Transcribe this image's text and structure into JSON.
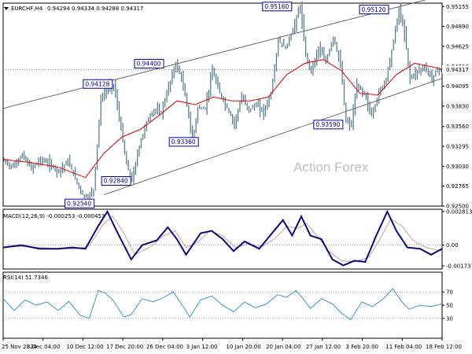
{
  "chart_data": {
    "type": "line",
    "symbol": "EURCHF,H4",
    "quote": "0.94294 0.94334 0.94288 0.94317",
    "watermark": "Action Forex",
    "current_price": 0.94317,
    "current_price_label": "0.94317",
    "price_axis_ticks": [
      "0.95155",
      "0.94890",
      "0.94625",
      "0.94360",
      "0.94095",
      "0.93830",
      "0.93560",
      "0.93295",
      "0.93030",
      "0.92765",
      "0.92500"
    ],
    "ylim": [
      0.925,
      0.952
    ],
    "date_labels": [
      "25 Nov 2024",
      "3 Dec 04:00",
      "10 Dec 12:00",
      "17 Dec 20:00",
      "26 Dec 04:00",
      "3 Jan 12:00",
      "10 Jan 20:00",
      "20 Jan 04:00",
      "27 Jan 12:00",
      "3 Feb 20:00",
      "11 Feb 04:00",
      "18 Feb 12:00"
    ],
    "price_bars": 240,
    "price_path": [
      [
        0,
        0.931
      ],
      [
        5,
        0.9302
      ],
      [
        10,
        0.9318
      ],
      [
        15,
        0.93
      ],
      [
        20,
        0.9312
      ],
      [
        25,
        0.9306
      ],
      [
        30,
        0.9296
      ],
      [
        35,
        0.931
      ],
      [
        40,
        0.9281
      ],
      [
        43,
        0.9265
      ],
      [
        46,
        0.9262
      ],
      [
        49,
        0.9272
      ],
      [
        53,
        0.9392
      ],
      [
        57,
        0.9408
      ],
      [
        60,
        0.9412
      ],
      [
        63,
        0.9368
      ],
      [
        67,
        0.9305
      ],
      [
        70,
        0.9284
      ],
      [
        74,
        0.933
      ],
      [
        78,
        0.9362
      ],
      [
        82,
        0.9378
      ],
      [
        86,
        0.9375
      ],
      [
        90,
        0.9408
      ],
      [
        94,
        0.944
      ],
      [
        97,
        0.942
      ],
      [
        100,
        0.9385
      ],
      [
        103,
        0.9336
      ],
      [
        106,
        0.938
      ],
      [
        110,
        0.938
      ],
      [
        114,
        0.943
      ],
      [
        118,
        0.94
      ],
      [
        122,
        0.938
      ],
      [
        126,
        0.936
      ],
      [
        130,
        0.9395
      ],
      [
        134,
        0.9378
      ],
      [
        138,
        0.9385
      ],
      [
        142,
        0.9375
      ],
      [
        146,
        0.94
      ],
      [
        150,
        0.947
      ],
      [
        154,
        0.946
      ],
      [
        158,
        0.9485
      ],
      [
        162,
        0.9516
      ],
      [
        165,
        0.945
      ],
      [
        168,
        0.943
      ],
      [
        172,
        0.946
      ],
      [
        176,
        0.9442
      ],
      [
        180,
        0.9475
      ],
      [
        184,
        0.9438
      ],
      [
        187,
        0.9362
      ],
      [
        190,
        0.9359
      ],
      [
        193,
        0.941
      ],
      [
        197,
        0.94
      ],
      [
        201,
        0.937
      ],
      [
        205,
        0.94
      ],
      [
        209,
        0.942
      ],
      [
        213,
        0.947
      ],
      [
        216,
        0.9512
      ],
      [
        219,
        0.948
      ],
      [
        222,
        0.942
      ],
      [
        226,
        0.943
      ],
      [
        230,
        0.9435
      ],
      [
        234,
        0.942
      ],
      [
        237,
        0.9432
      ],
      [
        240,
        0.9432
      ]
    ],
    "channel": {
      "upper": [
        [
          0,
          0.938
        ],
        [
          240,
          0.953
        ]
      ],
      "lower": [
        [
          55,
          0.9265
        ],
        [
          240,
          0.942
        ]
      ]
    },
    "ma_path": [
      [
        0,
        0.9312
      ],
      [
        15,
        0.9308
      ],
      [
        30,
        0.9302
      ],
      [
        45,
        0.9288
      ],
      [
        55,
        0.932
      ],
      [
        65,
        0.9342
      ],
      [
        75,
        0.9352
      ],
      [
        85,
        0.937
      ],
      [
        95,
        0.939
      ],
      [
        105,
        0.9385
      ],
      [
        115,
        0.9395
      ],
      [
        125,
        0.939
      ],
      [
        135,
        0.939
      ],
      [
        145,
        0.9395
      ],
      [
        155,
        0.9425
      ],
      [
        165,
        0.944
      ],
      [
        175,
        0.9445
      ],
      [
        185,
        0.943
      ],
      [
        195,
        0.94
      ],
      [
        205,
        0.9398
      ],
      [
        215,
        0.9425
      ],
      [
        225,
        0.944
      ],
      [
        235,
        0.9435
      ],
      [
        240,
        0.9432
      ]
    ],
    "price_annotations": [
      {
        "label": "0.92540",
        "bar": 42,
        "value": 0.9254
      },
      {
        "label": "0.94128",
        "bar": 52,
        "value": 0.9413
      },
      {
        "label": "0.92840",
        "bar": 62,
        "value": 0.9284
      },
      {
        "label": "0.94400",
        "bar": 80,
        "value": 0.944
      },
      {
        "label": "0.93360",
        "bar": 99,
        "value": 0.9336
      },
      {
        "label": "0.95160",
        "bar": 150,
        "value": 0.9516
      },
      {
        "label": "0.93590",
        "bar": 178,
        "value": 0.9359
      },
      {
        "label": "0.95120",
        "bar": 203,
        "value": 0.9512
      }
    ],
    "macd": {
      "label": "MACD(12,26,9) -0.000253 -0.000453",
      "ticks": [
        "0.002813",
        "0.00",
        "-0.001737"
      ],
      "ylim": [
        -0.002,
        0.003
      ],
      "main": [
        [
          0,
          -0.0002
        ],
        [
          10,
          0.0
        ],
        [
          20,
          -0.0003
        ],
        [
          30,
          -0.0003
        ],
        [
          38,
          -0.0002
        ],
        [
          45,
          -0.0003
        ],
        [
          52,
          0.0016
        ],
        [
          57,
          0.0028
        ],
        [
          62,
          0.0012
        ],
        [
          70,
          -0.0012
        ],
        [
          76,
          0.0
        ],
        [
          84,
          0.0004
        ],
        [
          90,
          0.0015
        ],
        [
          95,
          0.0005
        ],
        [
          100,
          -0.0008
        ],
        [
          108,
          0.001
        ],
        [
          114,
          0.0012
        ],
        [
          120,
          0.0005
        ],
        [
          126,
          -0.0005
        ],
        [
          132,
          0.0003
        ],
        [
          140,
          -0.0003
        ],
        [
          146,
          0.0008
        ],
        [
          153,
          0.0021
        ],
        [
          158,
          0.0008
        ],
        [
          163,
          0.0024
        ],
        [
          168,
          0.0008
        ],
        [
          174,
          0.0005
        ],
        [
          180,
          -0.0012
        ],
        [
          186,
          -0.0017
        ],
        [
          192,
          -0.0013
        ],
        [
          198,
          -0.0014
        ],
        [
          204,
          0.0008
        ],
        [
          210,
          0.0028
        ],
        [
          215,
          0.0012
        ],
        [
          221,
          -0.0002
        ],
        [
          228,
          -0.0003
        ],
        [
          234,
          -0.0008
        ],
        [
          240,
          -0.0003
        ]
      ],
      "signal": [
        [
          0,
          -0.0002
        ],
        [
          10,
          -0.0001
        ],
        [
          20,
          -0.0002
        ],
        [
          30,
          -0.0003
        ],
        [
          40,
          -0.0003
        ],
        [
          47,
          -0.0001
        ],
        [
          55,
          0.0018
        ],
        [
          60,
          0.0024
        ],
        [
          66,
          0.001
        ],
        [
          72,
          -0.0008
        ],
        [
          80,
          -0.0002
        ],
        [
          88,
          0.0008
        ],
        [
          94,
          0.0012
        ],
        [
          100,
          -0.0002
        ],
        [
          106,
          0.0002
        ],
        [
          113,
          0.0012
        ],
        [
          120,
          0.0008
        ],
        [
          127,
          -0.0002
        ],
        [
          134,
          0.0001
        ],
        [
          142,
          -0.0001
        ],
        [
          149,
          0.0006
        ],
        [
          155,
          0.0016
        ],
        [
          161,
          0.0014
        ],
        [
          166,
          0.0018
        ],
        [
          172,
          0.0007
        ],
        [
          178,
          -0.0005
        ],
        [
          185,
          -0.0013
        ],
        [
          192,
          -0.0014
        ],
        [
          200,
          -0.001
        ],
        [
          206,
          0.0005
        ],
        [
          212,
          0.0022
        ],
        [
          218,
          0.0016
        ],
        [
          224,
          0.0004
        ],
        [
          231,
          -0.0002
        ],
        [
          240,
          -0.0005
        ]
      ]
    },
    "rsi": {
      "label": "RSI(14) 51.7346",
      "ticks": [
        "70",
        "50",
        "30"
      ],
      "ylim": [
        0,
        100
      ],
      "path": [
        [
          0,
          60
        ],
        [
          6,
          42
        ],
        [
          12,
          58
        ],
        [
          18,
          50
        ],
        [
          24,
          55
        ],
        [
          30,
          42
        ],
        [
          36,
          56
        ],
        [
          42,
          35
        ],
        [
          47,
          30
        ],
        [
          52,
          72
        ],
        [
          56,
          68
        ],
        [
          60,
          58
        ],
        [
          66,
          32
        ],
        [
          70,
          36
        ],
        [
          76,
          60
        ],
        [
          82,
          55
        ],
        [
          88,
          62
        ],
        [
          93,
          70
        ],
        [
          98,
          50
        ],
        [
          102,
          32
        ],
        [
          108,
          58
        ],
        [
          114,
          64
        ],
        [
          120,
          50
        ],
        [
          126,
          40
        ],
        [
          132,
          55
        ],
        [
          138,
          46
        ],
        [
          144,
          52
        ],
        [
          150,
          66
        ],
        [
          155,
          62
        ],
        [
          160,
          72
        ],
        [
          164,
          60
        ],
        [
          168,
          45
        ],
        [
          174,
          60
        ],
        [
          180,
          52
        ],
        [
          185,
          38
        ],
        [
          190,
          28
        ],
        [
          196,
          55
        ],
        [
          202,
          48
        ],
        [
          208,
          60
        ],
        [
          213,
          75
        ],
        [
          218,
          55
        ],
        [
          222,
          44
        ],
        [
          228,
          50
        ],
        [
          234,
          48
        ],
        [
          240,
          52
        ]
      ]
    }
  }
}
